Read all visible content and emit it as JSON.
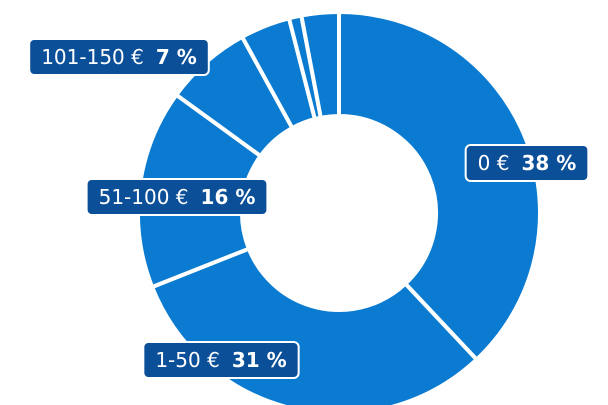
{
  "chart_data": {
    "type": "donut",
    "categories": [
      "0 €",
      "1-50 €",
      "51-100 €",
      "101-150 €",
      null,
      null,
      null
    ],
    "values": [
      38,
      31,
      16,
      7,
      4,
      1,
      3
    ],
    "value_labels": [
      "38 %",
      "31 %",
      "16 %",
      "7 %",
      null,
      null,
      null
    ],
    "color": "#0a7bd0",
    "label_color": "#0b4f98"
  }
}
